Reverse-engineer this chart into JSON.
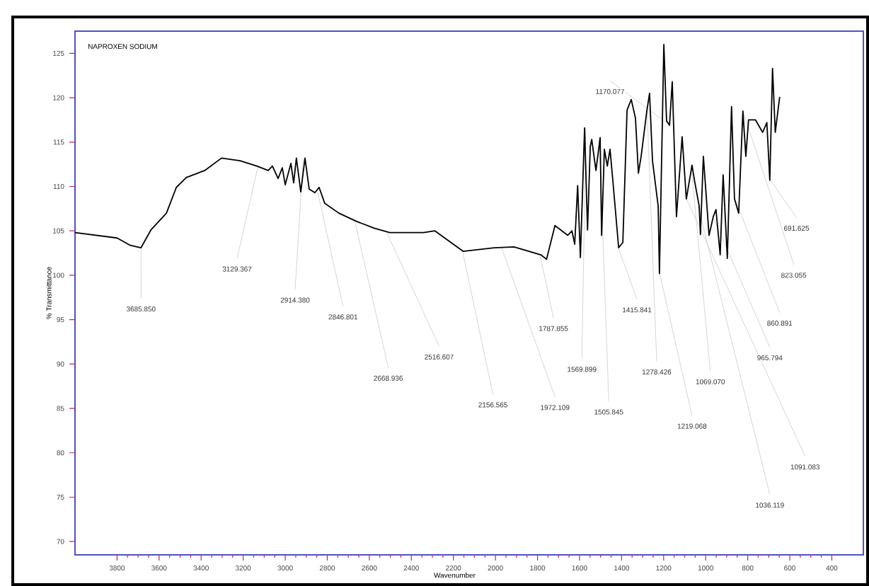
{
  "chart_data": {
    "type": "line",
    "title": "NAPROXEN SODIUM",
    "xlabel": "Wavenumber",
    "ylabel": "% Transmittance",
    "xlim": [
      4000,
      250
    ],
    "ylim": [
      68.5,
      127.5
    ],
    "xticks": [
      3800,
      3600,
      3400,
      3200,
      3000,
      2800,
      2600,
      2400,
      2200,
      2000,
      1800,
      1600,
      1400,
      1200,
      1000,
      800,
      600,
      400
    ],
    "yticks": [
      70,
      75,
      80,
      85,
      90,
      95,
      100,
      105,
      110,
      115,
      120,
      125
    ],
    "grid": false,
    "marker": "none",
    "line_style": "solid",
    "series": [
      {
        "color": "#000000",
        "x": [
          4000,
          3800,
          3740,
          3686,
          3639,
          3565,
          3518,
          3471,
          3383,
          3303,
          3215,
          3135,
          3081,
          3061,
          3034,
          3014,
          3000,
          2973,
          2960,
          2947,
          2926,
          2906,
          2886,
          2859,
          2839,
          2812,
          2745,
          2664,
          2577,
          2503,
          2342,
          2288,
          2154,
          2006,
          1912,
          1784,
          1757,
          1717,
          1656,
          1636,
          1623,
          1609,
          1596,
          1576,
          1562,
          1549,
          1542,
          1522,
          1502,
          1495,
          1482,
          1468,
          1455,
          1441,
          1414,
          1394,
          1374,
          1354,
          1334,
          1320,
          1307,
          1280,
          1267,
          1253,
          1226,
          1220,
          1199,
          1186,
          1172,
          1159,
          1139,
          1112,
          1092,
          1065,
          1052,
          1031,
          1025,
          1011,
          984,
          964,
          951,
          931,
          917,
          897,
          877,
          863,
          843,
          823,
          809,
          796,
          763,
          729,
          709,
          695,
          682,
          669,
          648
        ],
        "values": [
          104.8,
          104.2,
          103.4,
          103.1,
          105.1,
          107.0,
          109.9,
          111.0,
          111.8,
          113.2,
          112.9,
          112.3,
          111.8,
          112.3,
          110.9,
          112.1,
          110.2,
          112.6,
          110.4,
          113.2,
          109.4,
          113.2,
          109.7,
          109.3,
          109.9,
          108.1,
          107.0,
          106.1,
          105.3,
          104.8,
          104.8,
          105.0,
          102.7,
          103.1,
          103.2,
          102.3,
          101.8,
          105.6,
          104.5,
          105.0,
          103.5,
          110.1,
          102.0,
          116.6,
          105.1,
          114.5,
          115.3,
          111.8,
          115.5,
          104.5,
          114.2,
          112.3,
          114.2,
          110.5,
          103.1,
          103.7,
          118.6,
          119.8,
          117.7,
          111.5,
          113.4,
          118.5,
          120.5,
          112.9,
          107.8,
          100.2,
          126.0,
          117.4,
          116.9,
          121.8,
          106.6,
          115.6,
          108.6,
          112.4,
          110.5,
          107.8,
          104.6,
          113.4,
          104.5,
          106.6,
          107.4,
          102.3,
          111.3,
          101.9,
          119.0,
          108.6,
          107.0,
          118.5,
          113.4,
          117.5,
          117.5,
          116.1,
          117.2,
          110.7,
          123.3,
          116.1,
          120.1
        ]
      }
    ],
    "annotations": [
      {
        "text": "3685.850",
        "x": 3685.85,
        "y": 103.1
      },
      {
        "text": "3129.367",
        "x": 3129.367,
        "y": 112.3
      },
      {
        "text": "2914.380",
        "x": 2914.38,
        "y": 113.2
      },
      {
        "text": "2846.801",
        "x": 2846.801,
        "y": 109.5
      },
      {
        "text": "2668.936",
        "x": 2668.936,
        "y": 106.1
      },
      {
        "text": "2516.607",
        "x": 2516.607,
        "y": 104.8
      },
      {
        "text": "2156.565",
        "x": 2156.565,
        "y": 102.7
      },
      {
        "text": "1972.109",
        "x": 1972.109,
        "y": 103.2
      },
      {
        "text": "1787.855",
        "x": 1787.855,
        "y": 102.3
      },
      {
        "text": "1569.899",
        "x": 1569.899,
        "y": 116.6
      },
      {
        "text": "1505.845",
        "x": 1505.845,
        "y": 115.5
      },
      {
        "text": "1415.841",
        "x": 1415.841,
        "y": 103.1
      },
      {
        "text": "1278.426",
        "x": 1278.426,
        "y": 118.5
      },
      {
        "text": "1219.068",
        "x": 1219.068,
        "y": 100.2
      },
      {
        "text": "1170.077",
        "x": 1170.077,
        "y": 116.9
      },
      {
        "text": "1069.070",
        "x": 1069.07,
        "y": 112.4
      },
      {
        "text": "1036.119",
        "x": 1036.119,
        "y": 107.8
      },
      {
        "text": "1091.083",
        "x": 1091.083,
        "y": 108.6
      },
      {
        "text": "965.794",
        "x": 965.794,
        "y": 106.6
      },
      {
        "text": "860.891",
        "x": 860.891,
        "y": 108.6
      },
      {
        "text": "823.055",
        "x": 823.055,
        "y": 118.5
      },
      {
        "text": "691.625",
        "x": 691.625,
        "y": 110.7
      }
    ]
  }
}
